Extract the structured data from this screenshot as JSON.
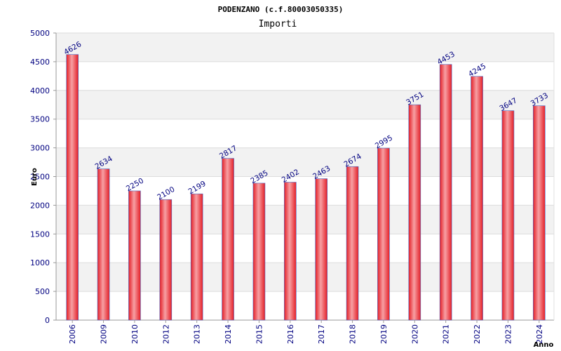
{
  "chart_data": {
    "type": "bar",
    "title": "PODENZANO (c.f.80003050335)",
    "subtitle": "Importi",
    "xlabel": "Anno",
    "ylabel": "Euro",
    "ylim": [
      0,
      5000
    ],
    "yticks": [
      0,
      500,
      1000,
      1500,
      2000,
      2500,
      3000,
      3500,
      4000,
      4500,
      5000
    ],
    "grid": true,
    "categories": [
      "2006",
      "2009",
      "2010",
      "2012",
      "2013",
      "2014",
      "2015",
      "2016",
      "2017",
      "2018",
      "2019",
      "2020",
      "2021",
      "2022",
      "2023",
      "2024"
    ],
    "values": [
      4626,
      2634,
      2250,
      2100,
      2199,
      2817,
      2385,
      2402,
      2463,
      2674,
      2995,
      3751,
      4453,
      4245,
      3647,
      3733
    ],
    "bar_color": "#e41e26",
    "bar_highlight": "#f7a0a4",
    "bar_outline": "#4a6cc8"
  }
}
